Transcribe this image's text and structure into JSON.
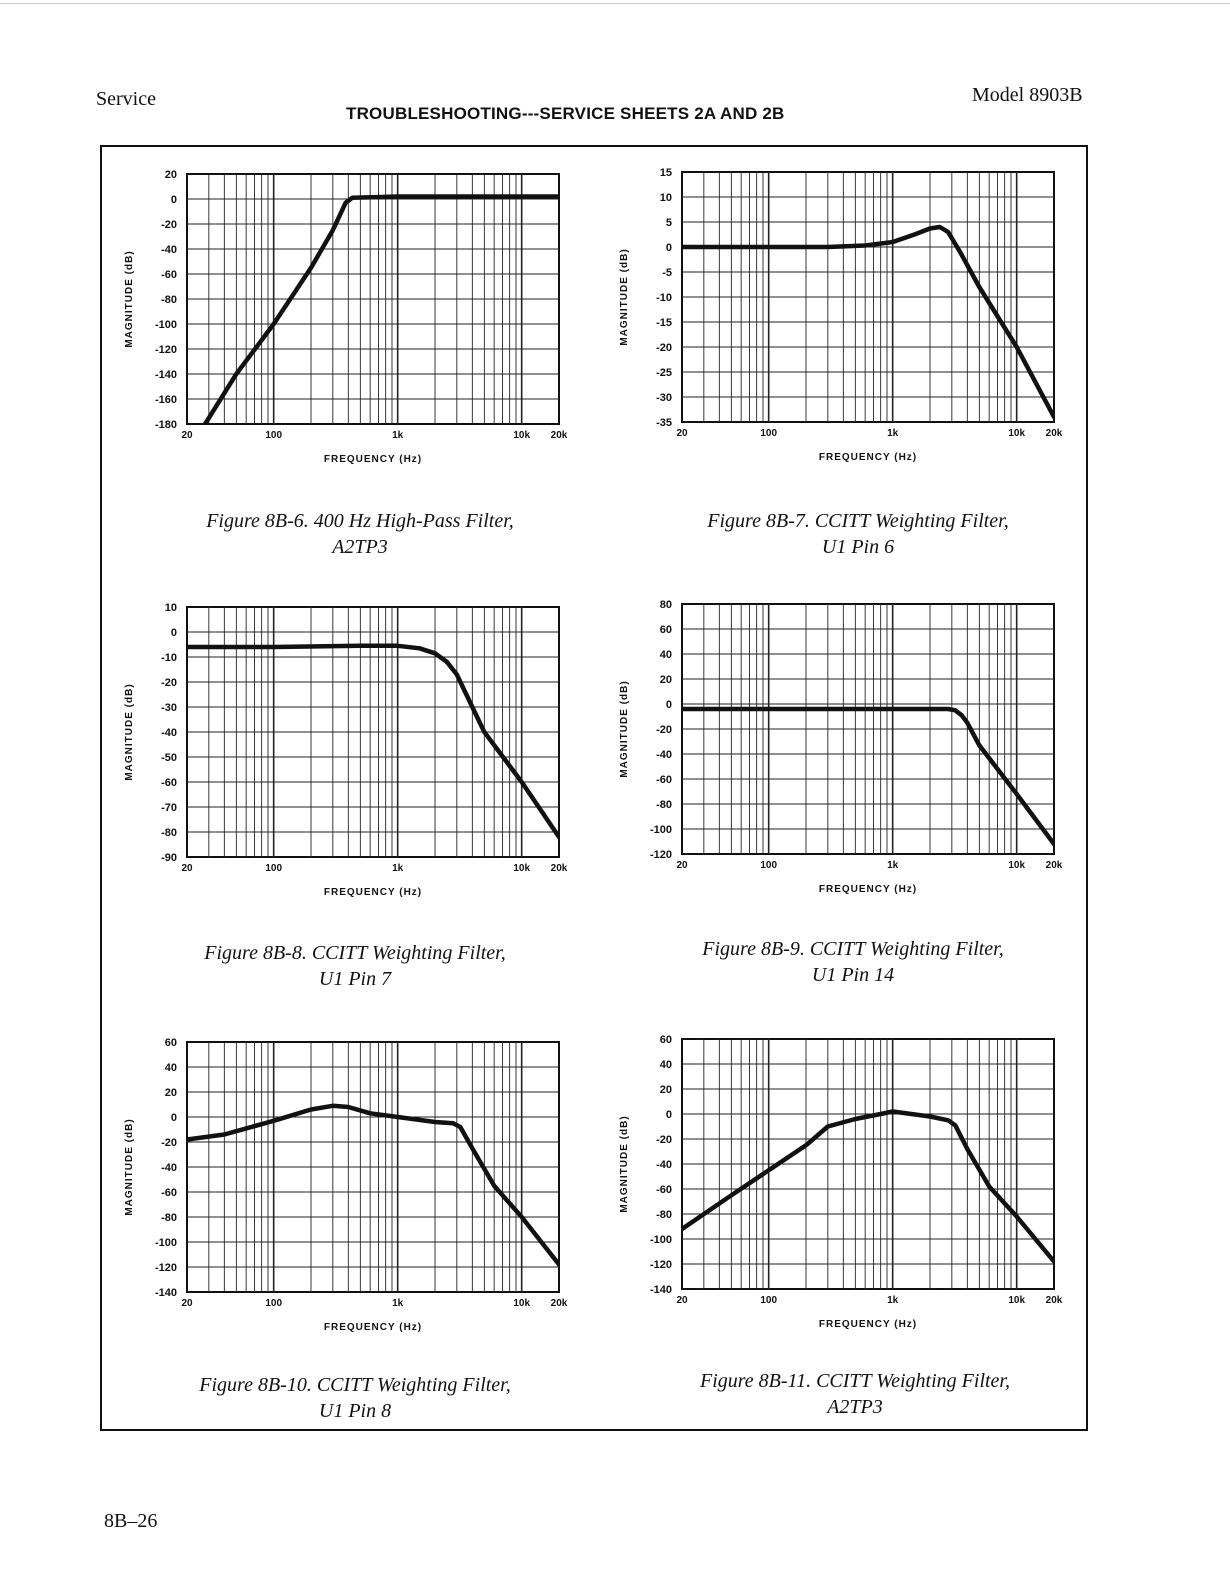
{
  "header": {
    "left": "Service",
    "right": "Model 8903B",
    "title": "TROUBLESHOOTING---SERVICE SHEETS 2A AND 2B"
  },
  "footer": {
    "page_number": "8B–26"
  },
  "colors": {
    "ink": "#111111",
    "grid": "#222222",
    "paper": "#ffffff"
  },
  "chart_data": [
    {
      "type": "line",
      "xscale": "log",
      "xlim": [
        20,
        20000
      ],
      "ylim": [
        -180,
        20
      ],
      "yticks": [
        "20",
        "0",
        "-20",
        "-40",
        "-60",
        "-80",
        "-100",
        "-120",
        "-140",
        "-160",
        "-180"
      ],
      "xticks": [
        {
          "v": 20,
          "label": "20"
        },
        {
          "v": 100,
          "label": "100"
        },
        {
          "v": 1000,
          "label": "1k"
        },
        {
          "v": 10000,
          "label": "10k"
        },
        {
          "v": 20000,
          "label": "20k"
        }
      ],
      "xlabel": "FREQUENCY (Hz)",
      "ylabel": "MAGNITUDE (dB)",
      "caption_line1": "Figure 8B-6. 400 Hz High-Pass Filter,",
      "caption_line2": "A2TP3",
      "x": [
        28,
        50,
        100,
        200,
        300,
        380,
        430,
        1000,
        5000,
        20000
      ],
      "y": [
        -180,
        -140,
        -100,
        -55,
        -25,
        -3,
        1,
        2,
        2,
        2
      ]
    },
    {
      "type": "line",
      "xscale": "log",
      "xlim": [
        20,
        20000
      ],
      "ylim": [
        -35,
        15
      ],
      "yticks": [
        "15",
        "10",
        "5",
        "0",
        "-5",
        "-10",
        "-15",
        "-20",
        "-25",
        "-30",
        "-35"
      ],
      "xticks": [
        {
          "v": 20,
          "label": "20"
        },
        {
          "v": 100,
          "label": "100"
        },
        {
          "v": 1000,
          "label": "1k"
        },
        {
          "v": 10000,
          "label": "10k"
        },
        {
          "v": 20000,
          "label": "20k"
        }
      ],
      "xlabel": "FREQUENCY (Hz)",
      "ylabel": "MAGNITUDE (dB)",
      "caption_line1": "Figure 8B-7. CCITT Weighting Filter,",
      "caption_line2": "U1 Pin 6",
      "x": [
        20,
        100,
        300,
        600,
        1000,
        1500,
        2000,
        2400,
        2800,
        3500,
        5000,
        10000,
        20000
      ],
      "y": [
        0,
        0,
        0,
        0.3,
        1,
        2.5,
        3.7,
        4,
        3,
        -1,
        -8,
        -20,
        -34
      ]
    },
    {
      "type": "line",
      "xscale": "log",
      "xlim": [
        20,
        20000
      ],
      "ylim": [
        -90,
        10
      ],
      "yticks": [
        "10",
        "0",
        "-10",
        "-20",
        "-30",
        "-40",
        "-50",
        "-60",
        "-70",
        "-80",
        "-90"
      ],
      "xticks": [
        {
          "v": 20,
          "label": "20"
        },
        {
          "v": 100,
          "label": "100"
        },
        {
          "v": 1000,
          "label": "1k"
        },
        {
          "v": 10000,
          "label": "10k"
        },
        {
          "v": 20000,
          "label": "20k"
        }
      ],
      "xlabel": "FREQUENCY (Hz)",
      "ylabel": "MAGNITUDE (dB)",
      "caption_line1": "Figure 8B-8. CCITT Weighting Filter,",
      "caption_line2": "U1 Pin 7",
      "x": [
        20,
        100,
        500,
        1000,
        1500,
        2000,
        2500,
        3000,
        4000,
        5000,
        10000,
        20000
      ],
      "y": [
        -6,
        -6,
        -5.5,
        -5.5,
        -6.5,
        -8.5,
        -12,
        -17,
        -30,
        -40,
        -60,
        -82
      ]
    },
    {
      "type": "line",
      "xscale": "log",
      "xlim": [
        20,
        20000
      ],
      "ylim": [
        -120,
        80
      ],
      "yticks": [
        "80",
        "60",
        "40",
        "20",
        "0",
        "-20",
        "-40",
        "-60",
        "-80",
        "-100",
        "-120"
      ],
      "xticks": [
        {
          "v": 20,
          "label": "20"
        },
        {
          "v": 100,
          "label": "100"
        },
        {
          "v": 1000,
          "label": "1k"
        },
        {
          "v": 10000,
          "label": "10k"
        },
        {
          "v": 20000,
          "label": "20k"
        }
      ],
      "xlabel": "FREQUENCY (Hz)",
      "ylabel": "MAGNITUDE (dB)",
      "caption_line1": "Figure 8B-9. CCITT Weighting Filter,",
      "caption_line2": "U1 Pin 14",
      "x": [
        20,
        100,
        1000,
        2000,
        2800,
        3200,
        3600,
        4000,
        5000,
        10000,
        20000
      ],
      "y": [
        -4,
        -4,
        -4,
        -4,
        -4,
        -5,
        -9,
        -15,
        -33,
        -72,
        -112
      ]
    },
    {
      "type": "line",
      "xscale": "log",
      "xlim": [
        20,
        20000
      ],
      "ylim": [
        -140,
        60
      ],
      "yticks": [
        "60",
        "40",
        "20",
        "0",
        "-20",
        "-40",
        "-60",
        "-80",
        "-100",
        "-120",
        "-140"
      ],
      "xticks": [
        {
          "v": 20,
          "label": "20"
        },
        {
          "v": 100,
          "label": "100"
        },
        {
          "v": 1000,
          "label": "1k"
        },
        {
          "v": 10000,
          "label": "10k"
        },
        {
          "v": 20000,
          "label": "20k"
        }
      ],
      "xlabel": "FREQUENCY (Hz)",
      "ylabel": "MAGNITUDE (dB)",
      "caption_line1": "Figure 8B-10. CCITT Weighting Filter,",
      "caption_line2": "U1 Pin 8",
      "x": [
        20,
        40,
        100,
        200,
        300,
        400,
        600,
        1000,
        2000,
        2800,
        3200,
        4000,
        6000,
        10000,
        20000
      ],
      "y": [
        -18,
        -14,
        -3,
        6,
        9,
        8,
        3,
        0,
        -4,
        -5,
        -8,
        -25,
        -55,
        -80,
        -118
      ]
    },
    {
      "type": "line",
      "xscale": "log",
      "xlim": [
        20,
        20000
      ],
      "ylim": [
        -140,
        60
      ],
      "yticks": [
        "60",
        "40",
        "20",
        "0",
        "-20",
        "-40",
        "-60",
        "-80",
        "-100",
        "-120",
        "-140"
      ],
      "xticks": [
        {
          "v": 20,
          "label": "20"
        },
        {
          "v": 100,
          "label": "100"
        },
        {
          "v": 1000,
          "label": "1k"
        },
        {
          "v": 10000,
          "label": "10k"
        },
        {
          "v": 20000,
          "label": "20k"
        }
      ],
      "xlabel": "FREQUENCY (Hz)",
      "ylabel": "MAGNITUDE (dB)",
      "caption_line1": "Figure 8B-11. CCITT Weighting Filter,",
      "caption_line2": "A2TP3",
      "x": [
        20,
        50,
        100,
        200,
        300,
        500,
        800,
        1000,
        2000,
        2800,
        3200,
        4000,
        6000,
        10000,
        20000
      ],
      "y": [
        -92,
        -65,
        -45,
        -25,
        -10,
        -4,
        0,
        2,
        -2,
        -5,
        -9,
        -28,
        -58,
        -82,
        -118
      ]
    }
  ]
}
